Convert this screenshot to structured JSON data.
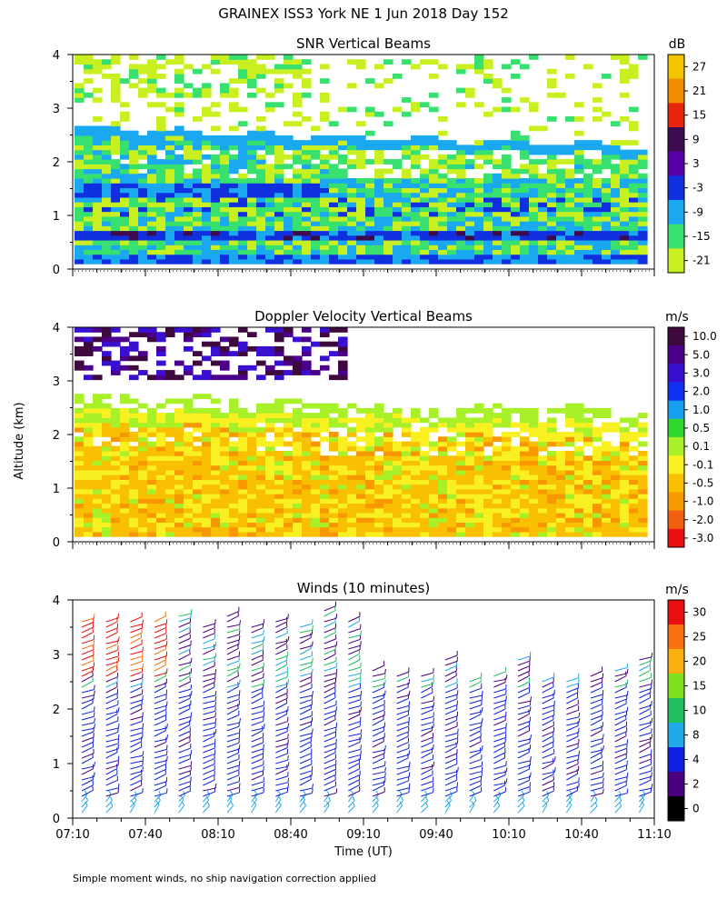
{
  "figure": {
    "title": "GRAINEX ISS3 York NE    1 Jun 2018 Day 152",
    "ylabel": "Altitude (km)",
    "xlabel": "Time (UT)",
    "footnote": "Simple moment winds, no ship navigation correction applied"
  },
  "chart_data": [
    {
      "type": "heatmap",
      "title": "SNR Vertical Beams",
      "colorbar_unit": "dB",
      "colorbar_ticks": [
        "27",
        "21",
        "15",
        "9",
        "3",
        "-3",
        "-9",
        "-15",
        "-21"
      ],
      "colorbar_colors": [
        "#f5c400",
        "#f28c00",
        "#e8250a",
        "#3e0a4e",
        "#5a00a8",
        "#1030e0",
        "#1aa8f0",
        "#38e070",
        "#c8f020"
      ],
      "ylim": [
        0,
        4
      ],
      "yticks": [
        "0",
        "1",
        "2",
        "3",
        "4"
      ],
      "x_range": [
        "07:10",
        "11:10"
      ],
      "notes": "SNR field: mostly -9 to -15 dB below 2.3 km, -3 dB layers near 0.5 and 1.5 km, sparse -15/-21 dB above 2.5 km"
    },
    {
      "type": "heatmap",
      "title": "Doppler Velocity Vertical Beams",
      "colorbar_unit": "m/s",
      "colorbar_ticks": [
        "10.0",
        "5.0",
        "3.0",
        "2.0",
        "1.0",
        "0.5",
        "0.1",
        "-0.1",
        "-0.5",
        "-1.0",
        "-2.0",
        "-3.0"
      ],
      "colorbar_colors": [
        "#3e0a3e",
        "#4a008a",
        "#3a10d0",
        "#1030f0",
        "#18a0f0",
        "#30d830",
        "#a8f028",
        "#f8f020",
        "#f8c000",
        "#f89800",
        "#f06010",
        "#e81010"
      ],
      "ylim": [
        0,
        4
      ],
      "yticks": [
        "0",
        "1",
        "2",
        "3",
        "4"
      ],
      "x_range": [
        "07:10",
        "11:10"
      ],
      "notes": "Velocities mostly -0.1 to -0.5 m/s below 2.3 km; 5-10 m/s returns above 3 km before 09:10"
    },
    {
      "type": "scatter",
      "title": "Winds (10 minutes)",
      "colorbar_unit": "m/s",
      "colorbar_ticks": [
        "30",
        "25",
        "20",
        "15",
        "10",
        "8",
        "4",
        "2",
        "0"
      ],
      "colorbar_colors": [
        "#e81010",
        "#f87010",
        "#f8b010",
        "#80e020",
        "#20c060",
        "#20a8e8",
        "#1020e0",
        "#4a0080",
        "#000000"
      ],
      "ylim": [
        0,
        4
      ],
      "yticks": [
        "0",
        "1",
        "2",
        "3",
        "4"
      ],
      "xticks": [
        "07:10",
        "07:40",
        "08:10",
        "08:40",
        "09:10",
        "09:40",
        "10:10",
        "10:40",
        "11:10"
      ],
      "notes": "Wind barbs every 10 min; mostly 4-8 m/s below 2 km, stronger 20-30 m/s above 2.5 km early in period"
    }
  ]
}
